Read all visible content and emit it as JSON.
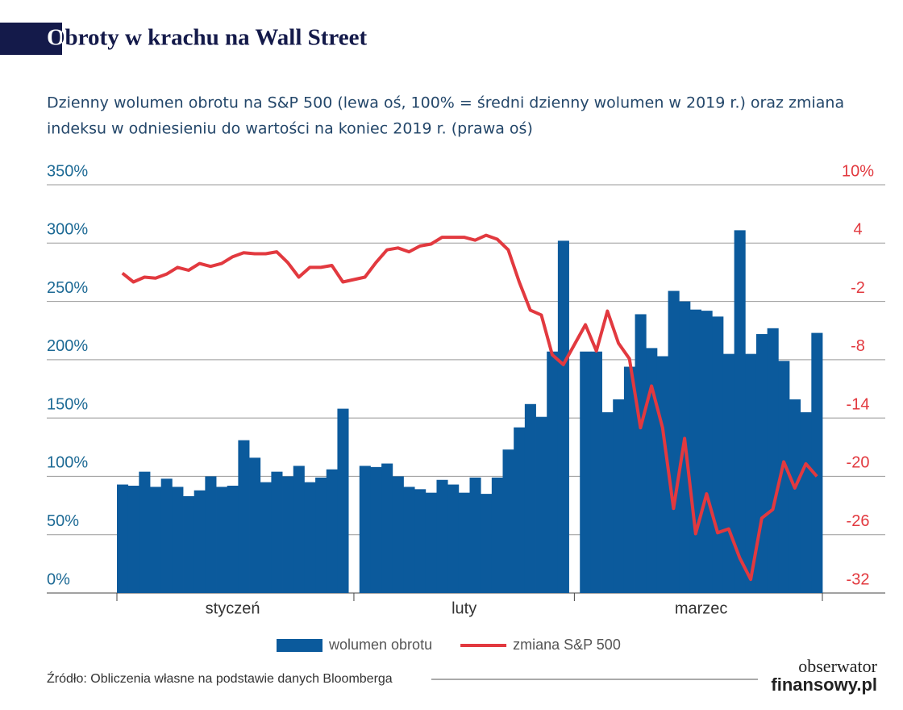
{
  "chart_data": {
    "type": "bar-line",
    "title": "Obroty w krachu na Wall Street",
    "subtitle": [
      "Dzienny wolumen obrotu na S&P 500 (lewa oś, 100% = średni dzienny wolumen w 2019 r.) oraz zmiana",
      "indeksu w odniesieniu do wartości na koniec 2019 r. (prawa oś)"
    ],
    "categories": [
      "styczeń",
      "luty",
      "marzec"
    ],
    "series": [
      {
        "name": "wolumen obrotu",
        "type": "bar",
        "color": "#0b5a9c",
        "values": [
          [
            93,
            92,
            104,
            91,
            98,
            91,
            83,
            88,
            100,
            91,
            92,
            131,
            116,
            95,
            104,
            100,
            109,
            95,
            99,
            106,
            158
          ],
          [
            109,
            108,
            111,
            100,
            91,
            89,
            86,
            97,
            93,
            86,
            99,
            85,
            99,
            123,
            142,
            162,
            151,
            207,
            302
          ],
          [
            207,
            207,
            155,
            166,
            194,
            239,
            210,
            203,
            259,
            250,
            243,
            242,
            237,
            205,
            311,
            205,
            222,
            227,
            199,
            166,
            155,
            223
          ]
        ]
      },
      {
        "name": "zmiana S&P 500",
        "type": "line",
        "axis": "y2",
        "color": "#e2393f",
        "values": [
          [
            0.9,
            0.0,
            0.5,
            0.4,
            0.8,
            1.5,
            1.2,
            1.9,
            1.6,
            1.9,
            2.6,
            3.0,
            2.9,
            2.9,
            3.1,
            2.0,
            0.5,
            1.5,
            1.5,
            1.7,
            0.0
          ],
          [
            0.5,
            2.0,
            3.3,
            3.5,
            3.1,
            3.7,
            3.9,
            4.6,
            4.6,
            4.6,
            4.3,
            4.8,
            4.4,
            3.3,
            0.0,
            -2.9,
            -3.4,
            -7.5,
            -8.5
          ],
          [
            -4.4,
            -7.1,
            -3.0,
            -6.3,
            -7.9,
            -15.0,
            -10.7,
            -15.0,
            -23.3,
            -16.1,
            -25.9,
            -21.8,
            -25.8,
            -25.4,
            -28.4,
            -30.6,
            -24.3,
            -23.4,
            -18.5,
            -21.2,
            -18.7,
            -20.0
          ]
        ]
      }
    ],
    "ylim": [
      0,
      350
    ],
    "yticks": [
      {
        "value": 0,
        "label": "0%"
      },
      {
        "value": 50,
        "label": "50%"
      },
      {
        "value": 100,
        "label": "100%"
      },
      {
        "value": 150,
        "label": "150%"
      },
      {
        "value": 200,
        "label": "200%"
      },
      {
        "value": 250,
        "label": "250%"
      },
      {
        "value": 300,
        "label": "300%"
      },
      {
        "value": 350,
        "label": "350%"
      }
    ],
    "y2lim": [
      -32,
      10
    ],
    "y2ticks": [
      -32,
      -26,
      -20,
      -14,
      -8,
      -2,
      4,
      {
        "value": 10,
        "label": "10%"
      }
    ],
    "grid": true,
    "source": "Źródło: Obliczenia własne na podstawie danych Bloomberga",
    "logo": [
      "obserwator",
      "finansowy.pl"
    ]
  }
}
